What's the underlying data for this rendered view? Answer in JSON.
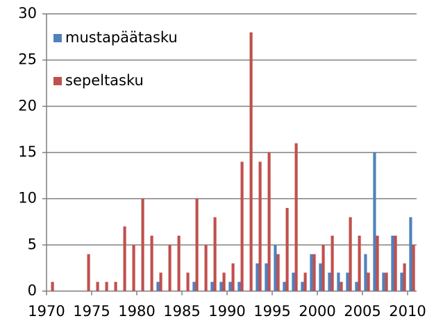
{
  "chart_data": {
    "type": "bar",
    "categories": [
      1970,
      null,
      null,
      null,
      null,
      1975,
      null,
      null,
      null,
      null,
      1980,
      null,
      null,
      null,
      null,
      1985,
      null,
      null,
      null,
      null,
      1990,
      null,
      null,
      null,
      null,
      1995,
      null,
      null,
      null,
      null,
      2000,
      null,
      null,
      null,
      null,
      2005,
      null,
      null,
      null,
      null,
      2010
    ],
    "series": [
      {
        "name": "mustapäätasku",
        "color": "#4f81bd",
        "values": [
          0,
          0,
          0,
          0,
          0,
          0,
          0,
          0,
          0,
          0,
          0,
          0,
          1,
          0,
          0,
          0,
          1,
          0,
          1,
          1,
          1,
          1,
          0,
          3,
          3,
          5,
          1,
          2,
          1,
          4,
          3,
          2,
          2,
          2,
          1,
          4,
          15,
          2,
          6,
          2,
          8
        ]
      },
      {
        "name": "sepeltasku",
        "color": "#c0504d",
        "values": [
          1,
          0,
          0,
          0,
          4,
          1,
          1,
          1,
          7,
          5,
          10,
          6,
          2,
          5,
          6,
          2,
          10,
          5,
          8,
          2,
          3,
          14,
          28,
          14,
          15,
          4,
          9,
          16,
          2,
          4,
          5,
          6,
          1,
          8,
          6,
          2,
          6,
          2,
          6,
          3,
          5
        ]
      }
    ],
    "ylim": [
      0,
      30
    ],
    "yticks": [
      0,
      5,
      10,
      15,
      20,
      25,
      30
    ],
    "grid": true,
    "legend": "top-left"
  }
}
